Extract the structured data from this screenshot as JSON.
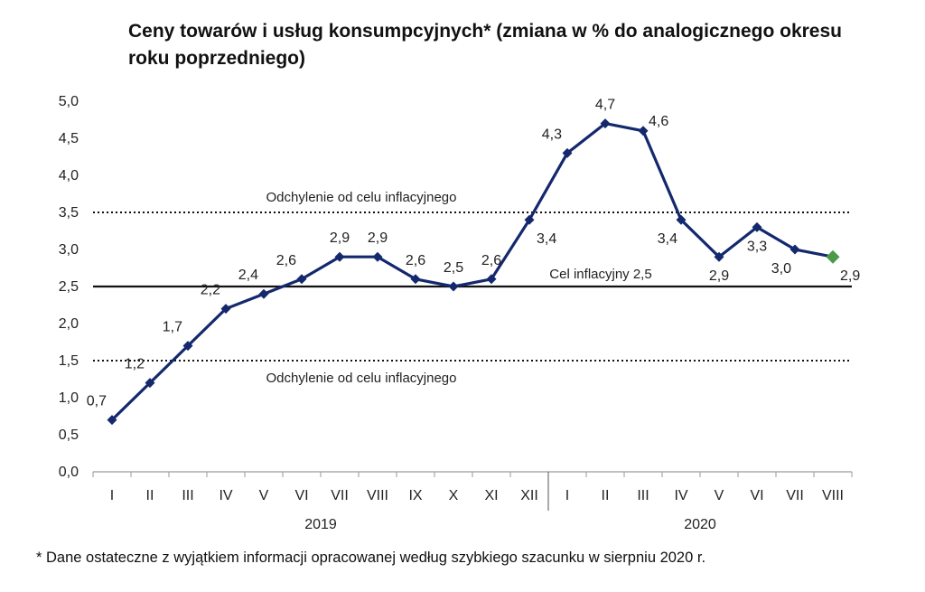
{
  "title": "Ceny towarów i usług konsumpcyjnych* (zmiana w % do analogicznego okresu roku poprzedniego)",
  "footnote": "* Dane ostateczne z wyjątkiem informacji opracowanej według szybkiego szacunku w sierpniu 2020 r.",
  "chart_data": {
    "type": "line",
    "title": "Ceny towarów i usług konsumpcyjnych* (zmiana w % do analogicznego okresu roku poprzedniego)",
    "ylim": [
      0,
      5
    ],
    "yticks": [
      "0,0",
      "0,5",
      "1,0",
      "1,5",
      "2,0",
      "2,5",
      "3,0",
      "3,5",
      "4,0",
      "4,5",
      "5,0"
    ],
    "categories": [
      "I",
      "II",
      "III",
      "IV",
      "V",
      "VI",
      "VII",
      "VIII",
      "IX",
      "X",
      "XI",
      "XII",
      "I",
      "II",
      "III",
      "IV",
      "V",
      "VI",
      "VII",
      "VIII"
    ],
    "groups": [
      {
        "label": "2019",
        "count": 12
      },
      {
        "label": "2020",
        "count": 8
      }
    ],
    "values": [
      0.7,
      1.2,
      1.7,
      2.2,
      2.4,
      2.6,
      2.9,
      2.9,
      2.6,
      2.5,
      2.6,
      3.4,
      4.3,
      4.7,
      4.6,
      3.4,
      2.9,
      3.3,
      3.0,
      2.9
    ],
    "value_labels": [
      "0,7",
      "1,2",
      "1,7",
      "2,2",
      "2,4",
      "2,6",
      "2,9",
      "2,9",
      "2,6",
      "2,5",
      "2,6",
      "3,4",
      "4,3",
      "4,7",
      "4,6",
      "3,4",
      "2,9",
      "3,3",
      "3,0",
      "2,9"
    ],
    "reference_lines": [
      {
        "value": 3.5,
        "style": "dotted",
        "label": "Odchylenie od celu inflacyjnego"
      },
      {
        "value": 2.5,
        "style": "solid",
        "label": "Cel inflacyjny 2,5"
      },
      {
        "value": 1.5,
        "style": "dotted",
        "label": "Odchylenie od celu inflacyjnego"
      }
    ],
    "colors": {
      "line": "#14286e",
      "marker": "#14286e",
      "last_marker": "#4a9a4a"
    },
    "grid": false,
    "legend": "none"
  }
}
